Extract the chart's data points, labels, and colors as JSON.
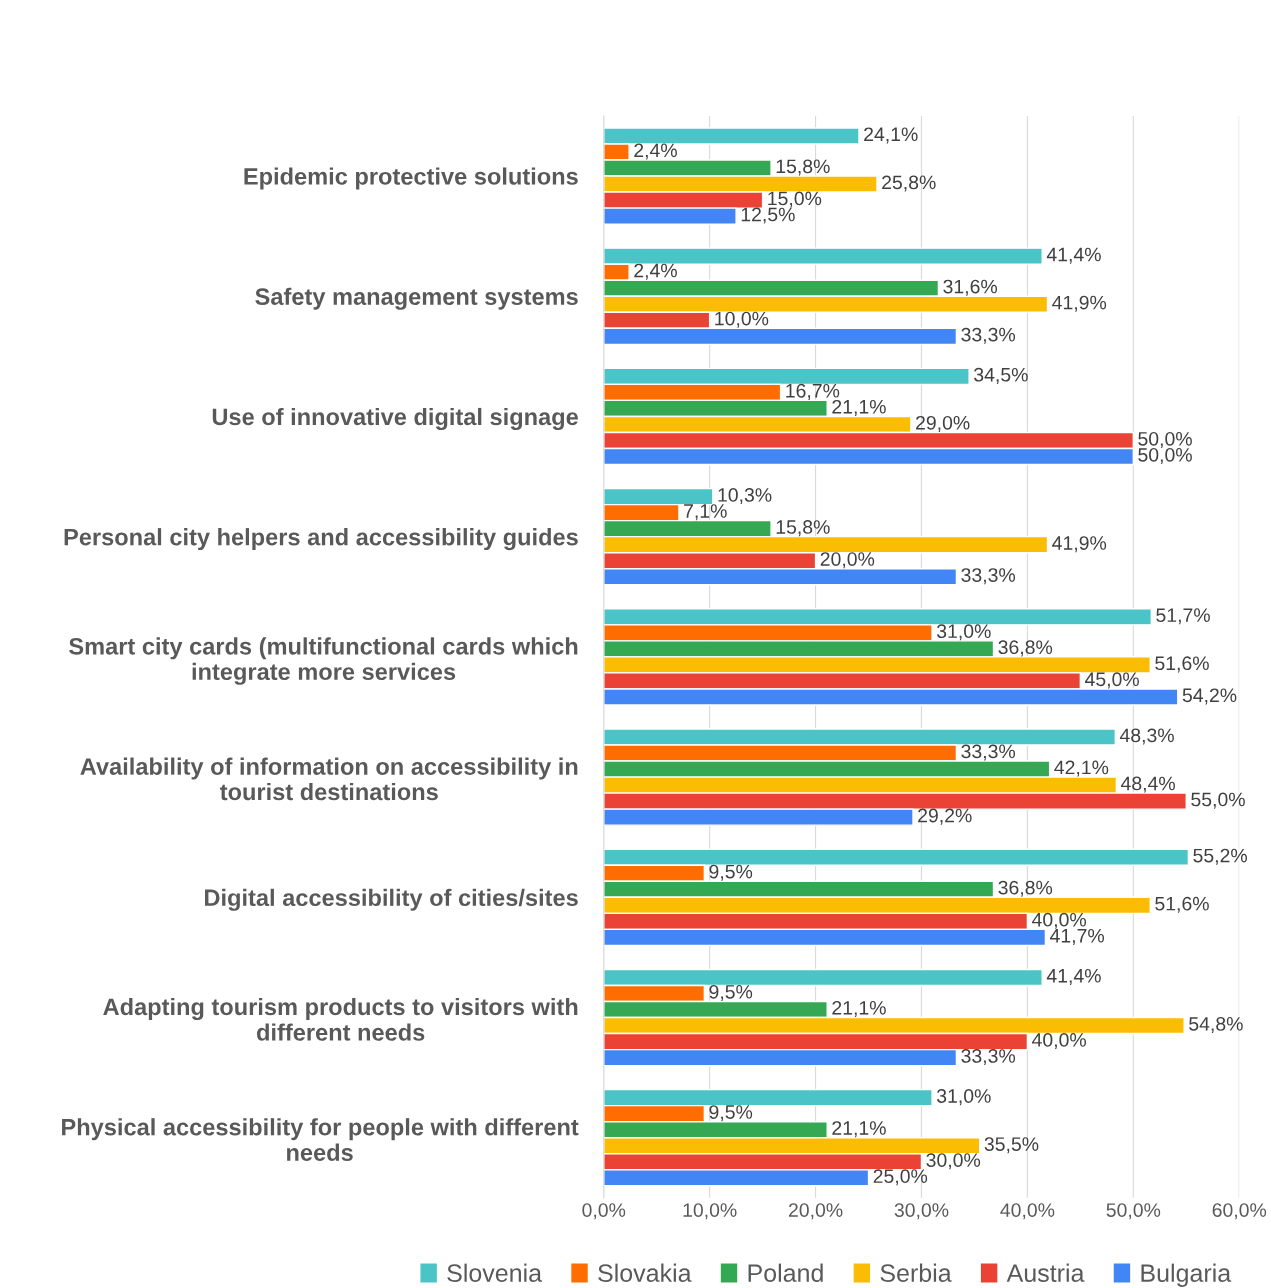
{
  "chart_data": {
    "type": "bar",
    "orientation": "horizontal",
    "categories": [
      "Epidemic protective solutions",
      "Safety management systems",
      "Use of innovative digital signage",
      "Personal city helpers and accessibility guides",
      "Smart city cards (multifunctional cards which\nintegrate more services",
      "Availability of information on accessibility in\ntourist destinations",
      "Digital accessibility of cities/sites",
      "Adapting tourism products to visitors with\ndifferent needs",
      "Physical accessibility for people with different\nneeds"
    ],
    "series": [
      {
        "name": "Slovenia",
        "color": "#4bc4c8",
        "values": [
          24.1,
          41.4,
          34.5,
          10.3,
          51.7,
          48.3,
          55.2,
          41.4,
          31.0
        ],
        "value_labels": [
          "24,1%",
          "41,4%",
          "34,5%",
          "10,3%",
          "51,7%",
          "48,3%",
          "55,2%",
          "41,4%",
          "31,0%"
        ]
      },
      {
        "name": "Slovakia",
        "color": "#ff6d01",
        "values": [
          2.4,
          2.4,
          16.7,
          7.1,
          31.0,
          33.3,
          9.5,
          9.5,
          9.5
        ],
        "value_labels": [
          "2,4%",
          "2,4%",
          "16,7%",
          "7,1%",
          "31,0%",
          "33,3%",
          "9,5%",
          "9,5%",
          "9,5%"
        ]
      },
      {
        "name": "Poland",
        "color": "#34a853",
        "values": [
          15.8,
          31.6,
          21.1,
          15.8,
          36.8,
          42.1,
          36.8,
          21.1,
          21.1
        ],
        "value_labels": [
          "15,8%",
          "31,6%",
          "21,1%",
          "15,8%",
          "36,8%",
          "42,1%",
          "36,8%",
          "21,1%",
          "21,1%"
        ]
      },
      {
        "name": "Serbia",
        "color": "#fbbc04",
        "values": [
          25.8,
          41.9,
          29.0,
          41.9,
          51.6,
          48.4,
          51.6,
          54.8,
          35.5
        ],
        "value_labels": [
          "25,8%",
          "41,9%",
          "29,0%",
          "41,9%",
          "51,6%",
          "48,4%",
          "51,6%",
          "54,8%",
          "35,5%"
        ]
      },
      {
        "name": "Austria",
        "color": "#ea4335",
        "values": [
          15.0,
          10.0,
          50.0,
          20.0,
          45.0,
          55.0,
          40.0,
          40.0,
          30.0
        ],
        "value_labels": [
          "15,0%",
          "10,0%",
          "50,0%",
          "20,0%",
          "45,0%",
          "55,0%",
          "40,0%",
          "40,0%",
          "30,0%"
        ]
      },
      {
        "name": "Bulgaria",
        "color": "#4285f4",
        "values": [
          12.5,
          33.3,
          50.0,
          33.3,
          54.2,
          29.2,
          41.7,
          33.3,
          25.0
        ],
        "value_labels": [
          "12,5%",
          "33,3%",
          "50,0%",
          "33,3%",
          "54,2%",
          "29,2%",
          "41,7%",
          "33,3%",
          "25,0%"
        ]
      }
    ],
    "xlim": [
      0,
      60
    ],
    "xticks": [
      {
        "value": 0,
        "label": "0,0%"
      },
      {
        "value": 10,
        "label": "10,0%"
      },
      {
        "value": 20,
        "label": "20,0%"
      },
      {
        "value": 30,
        "label": "30,0%"
      },
      {
        "value": 40,
        "label": "40,0%"
      },
      {
        "value": 50,
        "label": "50,0%"
      },
      {
        "value": 60,
        "label": "60,0%"
      }
    ],
    "grid": "x",
    "legend": "bottom"
  }
}
